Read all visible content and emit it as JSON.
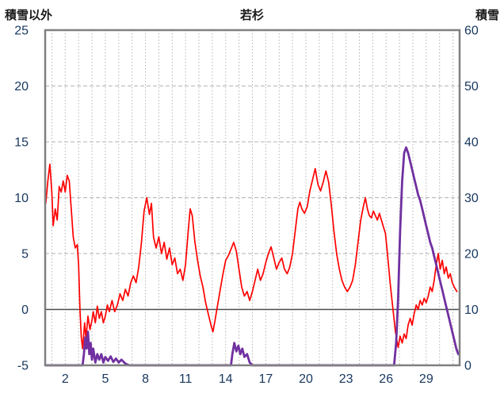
{
  "header": {
    "left_axis_title": "積雪以外",
    "chart_title": "若杉",
    "right_axis_title": "積雪"
  },
  "chart_data": {
    "type": "line",
    "title": "若杉",
    "legend": "none",
    "grid": true,
    "left_axis": {
      "title": "積雪以外",
      "min": -5,
      "max": 25,
      "ticks": [
        25,
        20,
        15,
        10,
        5,
        0,
        -5
      ]
    },
    "right_axis": {
      "title": "積雪",
      "min": 0,
      "max": 60,
      "ticks": [
        60,
        50,
        40,
        30,
        20,
        10,
        0
      ]
    },
    "x_axis": {
      "min": 0.5,
      "max": 31.5,
      "days": 31,
      "ticks": [
        2,
        5,
        8,
        11,
        14,
        17,
        20,
        23,
        26,
        29
      ],
      "gridlines_every_day": true
    },
    "colors": {
      "frame": "#808080",
      "grid": "#b3b3b3",
      "zero_line": "#4d4d4d",
      "tick_text": "#17375e",
      "temperature_line": "#ff0000",
      "snow_line": "#7030a0"
    },
    "series": [
      {
        "name": "積雪以外",
        "axis": "left",
        "color": "#ff0000",
        "width": 1.7,
        "points": [
          [
            0.55,
            9.5
          ],
          [
            0.7,
            11.5
          ],
          [
            0.85,
            13
          ],
          [
            1.0,
            10.5
          ],
          [
            1.1,
            7.5
          ],
          [
            1.25,
            9
          ],
          [
            1.4,
            8
          ],
          [
            1.55,
            11
          ],
          [
            1.7,
            10.5
          ],
          [
            1.85,
            11.5
          ],
          [
            2.0,
            10.5
          ],
          [
            2.15,
            12
          ],
          [
            2.3,
            11.5
          ],
          [
            2.45,
            9
          ],
          [
            2.6,
            6.5
          ],
          [
            2.75,
            5.5
          ],
          [
            2.9,
            5.8
          ],
          [
            3.0,
            4
          ],
          [
            3.1,
            0
          ],
          [
            3.2,
            -2.5
          ],
          [
            3.3,
            -3.5
          ],
          [
            3.45,
            -1.2
          ],
          [
            3.55,
            -2.6
          ],
          [
            3.7,
            -0.6
          ],
          [
            3.85,
            -1.8
          ],
          [
            4.0,
            -1
          ],
          [
            4.1,
            -0.2
          ],
          [
            4.25,
            -1.2
          ],
          [
            4.4,
            0.3
          ],
          [
            4.55,
            -0.8
          ],
          [
            4.7,
            -0.2
          ],
          [
            4.85,
            -1.2
          ],
          [
            5.0,
            -0.6
          ],
          [
            5.15,
            0.4
          ],
          [
            5.3,
            -0.2
          ],
          [
            5.5,
            0.8
          ],
          [
            5.7,
            -0.2
          ],
          [
            5.9,
            0.4
          ],
          [
            6.1,
            1.4
          ],
          [
            6.3,
            0.8
          ],
          [
            6.5,
            1.8
          ],
          [
            6.7,
            1.2
          ],
          [
            6.9,
            2.4
          ],
          [
            7.1,
            3
          ],
          [
            7.3,
            2.4
          ],
          [
            7.5,
            3.8
          ],
          [
            7.7,
            6
          ],
          [
            7.9,
            8.8
          ],
          [
            8.1,
            10
          ],
          [
            8.3,
            8.5
          ],
          [
            8.45,
            9.5
          ],
          [
            8.6,
            6.5
          ],
          [
            8.8,
            5.5
          ],
          [
            9.0,
            6.5
          ],
          [
            9.2,
            5
          ],
          [
            9.4,
            6
          ],
          [
            9.6,
            4.5
          ],
          [
            9.8,
            5.5
          ],
          [
            10.0,
            4
          ],
          [
            10.2,
            4.6
          ],
          [
            10.4,
            3.2
          ],
          [
            10.6,
            3.6
          ],
          [
            10.8,
            2.6
          ],
          [
            11.0,
            4
          ],
          [
            11.2,
            7
          ],
          [
            11.35,
            9
          ],
          [
            11.5,
            8.4
          ],
          [
            11.7,
            6
          ],
          [
            11.9,
            4.4
          ],
          [
            12.1,
            3
          ],
          [
            12.3,
            2
          ],
          [
            12.5,
            0.6
          ],
          [
            12.7,
            -0.4
          ],
          [
            12.9,
            -1.4
          ],
          [
            13.05,
            -2
          ],
          [
            13.2,
            -1
          ],
          [
            13.4,
            0.4
          ],
          [
            13.6,
            1.8
          ],
          [
            13.8,
            3.2
          ],
          [
            14.0,
            4.4
          ],
          [
            14.2,
            4.8
          ],
          [
            14.4,
            5.4
          ],
          [
            14.6,
            6
          ],
          [
            14.8,
            5.2
          ],
          [
            15.0,
            3.6
          ],
          [
            15.2,
            2
          ],
          [
            15.4,
            1.2
          ],
          [
            15.6,
            1.6
          ],
          [
            15.8,
            0.8
          ],
          [
            16.0,
            1.6
          ],
          [
            16.2,
            2.6
          ],
          [
            16.4,
            3.6
          ],
          [
            16.6,
            2.6
          ],
          [
            16.8,
            3.2
          ],
          [
            17.0,
            4.2
          ],
          [
            17.2,
            5
          ],
          [
            17.4,
            5.6
          ],
          [
            17.6,
            4.6
          ],
          [
            17.8,
            3.6
          ],
          [
            18.0,
            4.2
          ],
          [
            18.2,
            4.6
          ],
          [
            18.4,
            3.6
          ],
          [
            18.6,
            3.2
          ],
          [
            18.8,
            3.8
          ],
          [
            19.0,
            5
          ],
          [
            19.2,
            7
          ],
          [
            19.4,
            9
          ],
          [
            19.55,
            9.6
          ],
          [
            19.7,
            9
          ],
          [
            19.9,
            8.6
          ],
          [
            20.1,
            9.2
          ],
          [
            20.3,
            10.6
          ],
          [
            20.5,
            11.6
          ],
          [
            20.7,
            12.6
          ],
          [
            20.9,
            11.2
          ],
          [
            21.1,
            10.6
          ],
          [
            21.3,
            11.4
          ],
          [
            21.5,
            12.4
          ],
          [
            21.7,
            11.4
          ],
          [
            21.9,
            9.4
          ],
          [
            22.1,
            7
          ],
          [
            22.3,
            5
          ],
          [
            22.5,
            3.6
          ],
          [
            22.7,
            2.6
          ],
          [
            22.9,
            2
          ],
          [
            23.1,
            1.6
          ],
          [
            23.3,
            2
          ],
          [
            23.5,
            2.6
          ],
          [
            23.7,
            4
          ],
          [
            23.9,
            6
          ],
          [
            24.1,
            8
          ],
          [
            24.3,
            9.2
          ],
          [
            24.45,
            10
          ],
          [
            24.6,
            9
          ],
          [
            24.75,
            8.4
          ],
          [
            24.9,
            8.2
          ],
          [
            25.05,
            8.8
          ],
          [
            25.2,
            8.4
          ],
          [
            25.35,
            8
          ],
          [
            25.5,
            8.6
          ],
          [
            25.65,
            8
          ],
          [
            25.8,
            7.4
          ],
          [
            25.95,
            6.8
          ],
          [
            26.1,
            5
          ],
          [
            26.3,
            2.4
          ],
          [
            26.5,
            0.2
          ],
          [
            26.7,
            -2
          ],
          [
            26.9,
            -3.4
          ],
          [
            27.05,
            -2.4
          ],
          [
            27.2,
            -3
          ],
          [
            27.35,
            -2.2
          ],
          [
            27.5,
            -2.6
          ],
          [
            27.65,
            -1.4
          ],
          [
            27.8,
            -0.8
          ],
          [
            27.95,
            -1.4
          ],
          [
            28.1,
            -0.4
          ],
          [
            28.25,
            0.4
          ],
          [
            28.4,
            0
          ],
          [
            28.55,
            0.8
          ],
          [
            28.7,
            0.4
          ],
          [
            28.85,
            1
          ],
          [
            29.0,
            0.6
          ],
          [
            29.15,
            1.2
          ],
          [
            29.3,
            2
          ],
          [
            29.45,
            1.6
          ],
          [
            29.6,
            2.6
          ],
          [
            29.75,
            4
          ],
          [
            29.9,
            5
          ],
          [
            30.05,
            3.6
          ],
          [
            30.2,
            4.4
          ],
          [
            30.35,
            3.2
          ],
          [
            30.5,
            3.8
          ],
          [
            30.65,
            2.8
          ],
          [
            30.8,
            3.2
          ],
          [
            30.95,
            2.4
          ],
          [
            31.1,
            2
          ],
          [
            31.3,
            1.6
          ]
        ]
      },
      {
        "name": "積雪",
        "axis": "right",
        "color": "#7030a0",
        "width": 2.8,
        "points": [
          [
            0.55,
            0
          ],
          [
            3.3,
            0
          ],
          [
            3.4,
            2
          ],
          [
            3.5,
            5
          ],
          [
            3.6,
            3
          ],
          [
            3.7,
            6
          ],
          [
            3.8,
            2
          ],
          [
            3.9,
            4
          ],
          [
            4.0,
            1
          ],
          [
            4.1,
            3
          ],
          [
            4.25,
            0.5
          ],
          [
            4.4,
            2
          ],
          [
            4.55,
            1
          ],
          [
            4.7,
            2
          ],
          [
            4.85,
            0.5
          ],
          [
            5.0,
            1.5
          ],
          [
            5.2,
            0.8
          ],
          [
            5.4,
            1.6
          ],
          [
            5.6,
            0.6
          ],
          [
            5.8,
            1.2
          ],
          [
            6.0,
            0.5
          ],
          [
            6.2,
            1
          ],
          [
            6.5,
            0.3
          ],
          [
            6.8,
            0
          ],
          [
            14.4,
            0
          ],
          [
            14.5,
            2
          ],
          [
            14.65,
            4
          ],
          [
            14.8,
            2.5
          ],
          [
            14.95,
            3.5
          ],
          [
            15.1,
            2
          ],
          [
            15.25,
            3
          ],
          [
            15.4,
            1.5
          ],
          [
            15.6,
            2
          ],
          [
            15.8,
            0.5
          ],
          [
            16.0,
            0
          ],
          [
            26.6,
            0
          ],
          [
            26.75,
            4
          ],
          [
            26.9,
            12
          ],
          [
            27.05,
            24
          ],
          [
            27.2,
            33
          ],
          [
            27.35,
            38
          ],
          [
            27.5,
            39
          ],
          [
            27.65,
            38
          ],
          [
            27.8,
            36.5
          ],
          [
            27.95,
            35
          ],
          [
            28.1,
            33.5
          ],
          [
            28.25,
            32
          ],
          [
            28.4,
            30.5
          ],
          [
            28.55,
            29.5
          ],
          [
            28.7,
            28
          ],
          [
            28.85,
            26.5
          ],
          [
            29.0,
            25
          ],
          [
            29.15,
            23.5
          ],
          [
            29.3,
            22
          ],
          [
            29.45,
            21
          ],
          [
            29.6,
            19.5
          ],
          [
            29.75,
            18
          ],
          [
            29.9,
            16.5
          ],
          [
            30.05,
            15
          ],
          [
            30.2,
            13.5
          ],
          [
            30.35,
            12
          ],
          [
            30.5,
            10.5
          ],
          [
            30.65,
            9
          ],
          [
            30.8,
            7.5
          ],
          [
            30.95,
            6
          ],
          [
            31.1,
            4.5
          ],
          [
            31.25,
            3
          ],
          [
            31.4,
            2
          ]
        ]
      }
    ]
  }
}
